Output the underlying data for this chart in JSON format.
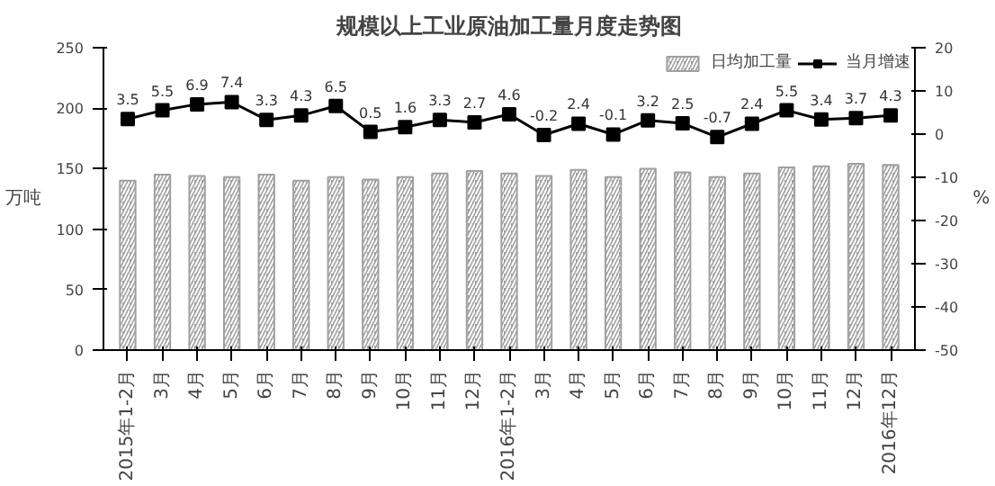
{
  "chart_data": {
    "type": "bar",
    "title": "规模以上工业原油加工量月度走势图",
    "ylabel": "万吨",
    "y2label": "%",
    "categories": [
      "2015年1-2月",
      "3月",
      "4月",
      "5月",
      "6月",
      "7月",
      "8月",
      "9月",
      "10月",
      "11月",
      "12月",
      "2016年1-2月",
      "3月",
      "4月",
      "5月",
      "6月",
      "7月",
      "8月",
      "9月",
      "10月",
      "11月",
      "12月",
      "2016年12月"
    ],
    "series": [
      {
        "name": "日均加工量",
        "color": "#a0a0a0",
        "values": [
          140,
          145,
          144,
          143,
          145,
          140,
          143,
          141,
          143,
          146,
          148,
          146,
          144,
          149,
          143,
          150,
          147,
          143,
          146,
          151,
          152,
          154,
          153
        ]
      },
      {
        "name": "当月增速",
        "type": "line",
        "axis": "y2",
        "color": "#000000",
        "marker": "square",
        "values": [
          3.5,
          5.5,
          6.9,
          7.4,
          3.3,
          4.3,
          6.5,
          0.5,
          1.6,
          3.3,
          2.7,
          4.6,
          -0.2,
          2.4,
          -0.1,
          3.2,
          2.5,
          -0.7,
          2.4,
          5.5,
          3.4,
          3.7,
          4.3
        ],
        "value_labels": [
          "3.5",
          "5.5",
          "6.9",
          "7.4",
          "3.3",
          "4.3",
          "6.5",
          "0.5",
          "1.6",
          "3.3",
          "2.7",
          "4.6",
          "-0.2",
          "2.4",
          "-0.1",
          "3.2",
          "2.5",
          "-0.7",
          "2.4",
          "5.5",
          "3.4",
          "3.7",
          "4.3"
        ]
      }
    ],
    "ylim": [
      0,
      250
    ],
    "yticks": [
      0,
      50,
      100,
      150,
      200,
      250
    ],
    "y2lim": [
      -50,
      20
    ],
    "y2ticks": [
      -50,
      -40,
      -30,
      -20,
      -10,
      0,
      10,
      20
    ],
    "grid": false,
    "legend": "top right"
  }
}
